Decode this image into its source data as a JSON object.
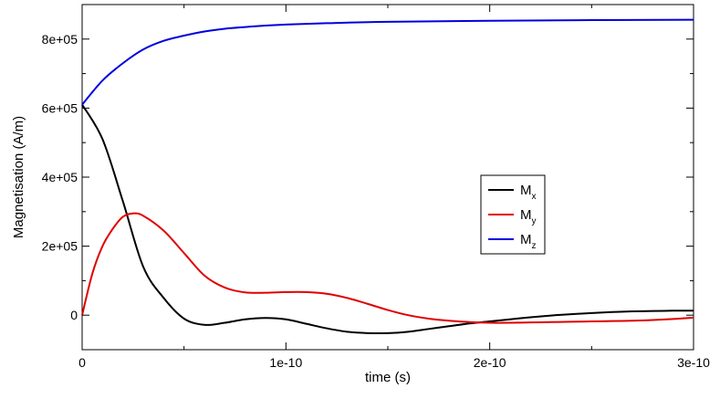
{
  "chart_data": {
    "type": "line",
    "title": "",
    "xlabel": "time (s)",
    "ylabel": "Magnetisation (A/m)",
    "xlim": [
      0,
      3e-10
    ],
    "ylim": [
      -100000,
      900000
    ],
    "grid": false,
    "legend_position": "center-right",
    "x_ticks": [
      {
        "value": 0,
        "label": "0"
      },
      {
        "value": 1e-10,
        "label": "1e-10"
      },
      {
        "value": 2e-10,
        "label": "2e-10"
      },
      {
        "value": 3e-10,
        "label": "3e-10"
      }
    ],
    "y_ticks": [
      {
        "value": 0,
        "label": "0"
      },
      {
        "value": 200000,
        "label": "2e+05"
      },
      {
        "value": 400000,
        "label": "4e+05"
      },
      {
        "value": 600000,
        "label": "6e+05"
      },
      {
        "value": 800000,
        "label": "8e+05"
      }
    ],
    "series": [
      {
        "name": "M",
        "subscript": "x",
        "color": "#000000",
        "points": [
          [
            0,
            610000
          ],
          [
            1e-11,
            510000
          ],
          [
            2e-11,
            330000
          ],
          [
            3e-11,
            140000
          ],
          [
            4e-11,
            50000
          ],
          [
            5e-11,
            -10000
          ],
          [
            6e-11,
            -28000
          ],
          [
            7e-11,
            -22000
          ],
          [
            8e-11,
            -12000
          ],
          [
            9e-11,
            -8000
          ],
          [
            1e-10,
            -12000
          ],
          [
            1.1e-10,
            -25000
          ],
          [
            1.2e-10,
            -38000
          ],
          [
            1.3e-10,
            -48000
          ],
          [
            1.4e-10,
            -52000
          ],
          [
            1.5e-10,
            -52000
          ],
          [
            1.6e-10,
            -48000
          ],
          [
            1.7e-10,
            -40000
          ],
          [
            1.8e-10,
            -32000
          ],
          [
            1.9e-10,
            -24000
          ],
          [
            2e-10,
            -18000
          ],
          [
            2.1e-10,
            -12000
          ],
          [
            2.2e-10,
            -6000
          ],
          [
            2.3e-10,
            -1000
          ],
          [
            2.4e-10,
            3000
          ],
          [
            2.5e-10,
            6000
          ],
          [
            2.6e-10,
            9000
          ],
          [
            2.7e-10,
            11000
          ],
          [
            2.8e-10,
            12000
          ],
          [
            2.9e-10,
            13000
          ],
          [
            3e-10,
            13000
          ]
        ]
      },
      {
        "name": "M",
        "subscript": "y",
        "color": "#e00000",
        "points": [
          [
            0,
            0
          ],
          [
            5e-12,
            120000
          ],
          [
            1e-11,
            200000
          ],
          [
            1.5e-11,
            250000
          ],
          [
            2e-11,
            285000
          ],
          [
            2.5e-11,
            295000
          ],
          [
            3e-11,
            288000
          ],
          [
            4e-11,
            245000
          ],
          [
            5e-11,
            180000
          ],
          [
            6e-11,
            115000
          ],
          [
            7e-11,
            80000
          ],
          [
            8e-11,
            66000
          ],
          [
            9e-11,
            65000
          ],
          [
            1e-10,
            67000
          ],
          [
            1.1e-10,
            67000
          ],
          [
            1.2e-10,
            62000
          ],
          [
            1.3e-10,
            50000
          ],
          [
            1.4e-10,
            33000
          ],
          [
            1.5e-10,
            15000
          ],
          [
            1.6e-10,
            0
          ],
          [
            1.7e-10,
            -10000
          ],
          [
            1.8e-10,
            -16000
          ],
          [
            1.9e-10,
            -20000
          ],
          [
            2e-10,
            -22000
          ],
          [
            2.1e-10,
            -22000
          ],
          [
            2.2e-10,
            -21000
          ],
          [
            2.3e-10,
            -20000
          ],
          [
            2.4e-10,
            -19000
          ],
          [
            2.5e-10,
            -18000
          ],
          [
            2.6e-10,
            -17000
          ],
          [
            2.7e-10,
            -16000
          ],
          [
            2.8e-10,
            -14000
          ],
          [
            2.9e-10,
            -11000
          ],
          [
            3e-10,
            -7000
          ]
        ]
      },
      {
        "name": "M",
        "subscript": "z",
        "color": "#0000dd",
        "points": [
          [
            0,
            610000
          ],
          [
            1e-11,
            680000
          ],
          [
            2e-11,
            730000
          ],
          [
            3e-11,
            770000
          ],
          [
            4e-11,
            795000
          ],
          [
            5e-11,
            810000
          ],
          [
            6e-11,
            822000
          ],
          [
            7e-11,
            830000
          ],
          [
            8e-11,
            835000
          ],
          [
            9e-11,
            839000
          ],
          [
            1e-10,
            842000
          ],
          [
            1.2e-10,
            846000
          ],
          [
            1.5e-10,
            850000
          ],
          [
            2e-10,
            853000
          ],
          [
            2.5e-10,
            855000
          ],
          [
            3e-10,
            856000
          ]
        ]
      }
    ]
  }
}
